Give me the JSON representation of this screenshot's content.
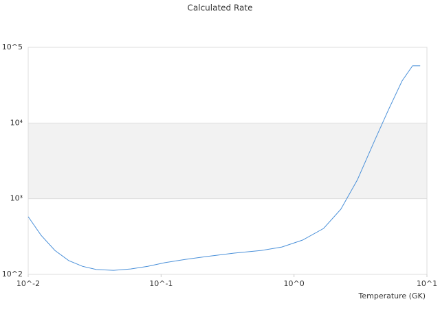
{
  "chart_data": {
    "type": "line",
    "title": "Calculated Rate",
    "x_label": "Temperature (GK)",
    "x": [
      0.01,
      0.0125,
      0.0159,
      0.0202,
      0.0256,
      0.0325,
      0.0438,
      0.059,
      0.0794,
      0.107,
      0.153,
      0.219,
      0.354,
      0.568,
      0.81,
      1.16,
      1.67,
      2.25,
      3.0,
      4.04,
      5.14,
      6.5,
      7.8,
      8.9
    ],
    "values": [
      578,
      329,
      207,
      152,
      128,
      116,
      113,
      118,
      128,
      143,
      158,
      172,
      191,
      207,
      230,
      284,
      405,
      726,
      1783,
      5860,
      15000,
      36000,
      57000,
      57000
    ],
    "color": "#4a90d9",
    "log_x": true,
    "log_y": true,
    "xlim": [
      0.01,
      10
    ],
    "ylim": [
      100,
      100000
    ],
    "xticks": [
      {
        "value": 0.01,
        "label": "10^-2"
      },
      {
        "value": 0.1,
        "label": "10^-1"
      },
      {
        "value": 1,
        "label": "10^0"
      },
      {
        "value": 10,
        "label": "10^1"
      }
    ],
    "yticks": [
      {
        "value": 100,
        "label": "10^2"
      },
      {
        "value": 1000,
        "label": "10³"
      },
      {
        "value": 10000,
        "label": "10⁴"
      },
      {
        "value": 100000,
        "label": "10^5"
      }
    ],
    "grid": true
  }
}
